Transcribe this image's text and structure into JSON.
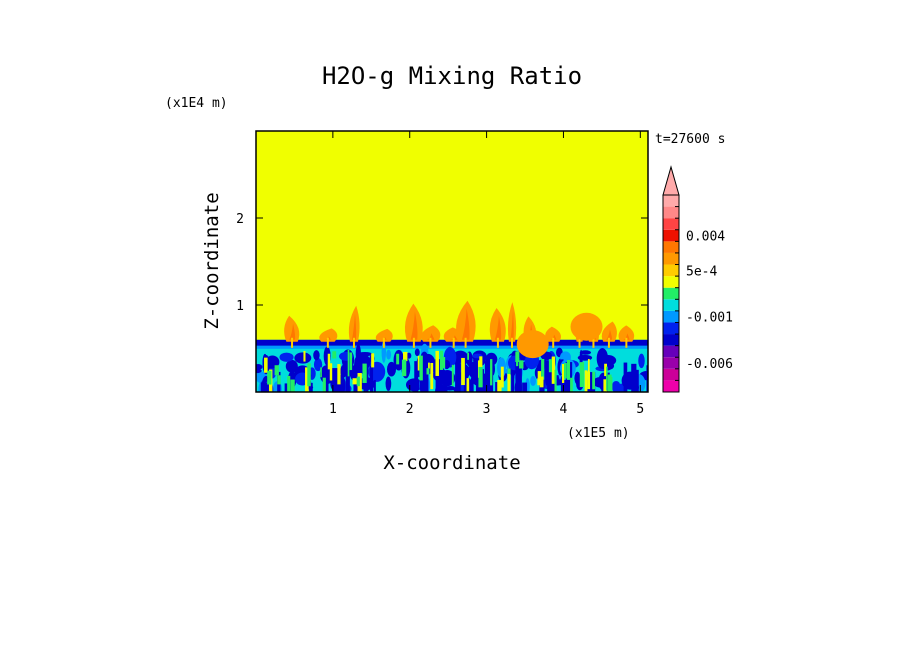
{
  "chart_data": {
    "type": "heatmap",
    "title": "H2O-g Mixing Ratio",
    "xlabel": "X-coordinate",
    "ylabel": "Z-coordinate",
    "x_scale_label": "(x1E5 m)",
    "y_scale_label": "(x1E4 m)",
    "time_label": "t=27600 s",
    "xlim": [
      0,
      5.1
    ],
    "ylim": [
      0,
      3.0
    ],
    "x_ticks": [
      1,
      2,
      3,
      4,
      5
    ],
    "x_tick_labels": [
      "1",
      "2",
      "3",
      "4",
      "5"
    ],
    "y_ticks": [
      1,
      2
    ],
    "y_tick_labels": [
      "1",
      "2"
    ],
    "background_color": "#f0ff00",
    "field_summary": {
      "upper_layer_value_range": [
        0,
        0.0005
      ],
      "moist_layer_top": 0.6,
      "plume_max_height": 1.05
    },
    "colorbar": {
      "levels": [
        {
          "value": -0.009,
          "color": "#ee00aa"
        },
        {
          "value": -0.007,
          "color": "#cc0099"
        },
        {
          "value": -0.006,
          "color": "#9900aa"
        },
        {
          "value": -0.005,
          "color": "#6600bb"
        },
        {
          "value": -0.003,
          "color": "#0000cc"
        },
        {
          "value": -0.002,
          "color": "#0022ee"
        },
        {
          "value": -0.001,
          "color": "#0099ff"
        },
        {
          "value": -0.0005,
          "color": "#00dddd"
        },
        {
          "value": 0,
          "color": "#22ee66"
        },
        {
          "value": 0.0003,
          "color": "#f0ff00"
        },
        {
          "value": 0.0005,
          "color": "#ffcc00"
        },
        {
          "value": 0.001,
          "color": "#ff9900"
        },
        {
          "value": 0.002,
          "color": "#ff7700"
        },
        {
          "value": 0.004,
          "color": "#ee1100"
        },
        {
          "value": 0.006,
          "color": "#ff4444"
        },
        {
          "value": 0.008,
          "color": "#ff8888"
        },
        {
          "value": 0.01,
          "color": "#ffaaaa"
        }
      ],
      "tick_labels": [
        {
          "value": 0.004,
          "label": "0.004"
        },
        {
          "value": 0.0005,
          "label": "5e-4"
        },
        {
          "value": -0.001,
          "label": "-0.001"
        },
        {
          "value": -0.006,
          "label": "-0.006"
        }
      ],
      "extend": "max"
    }
  }
}
